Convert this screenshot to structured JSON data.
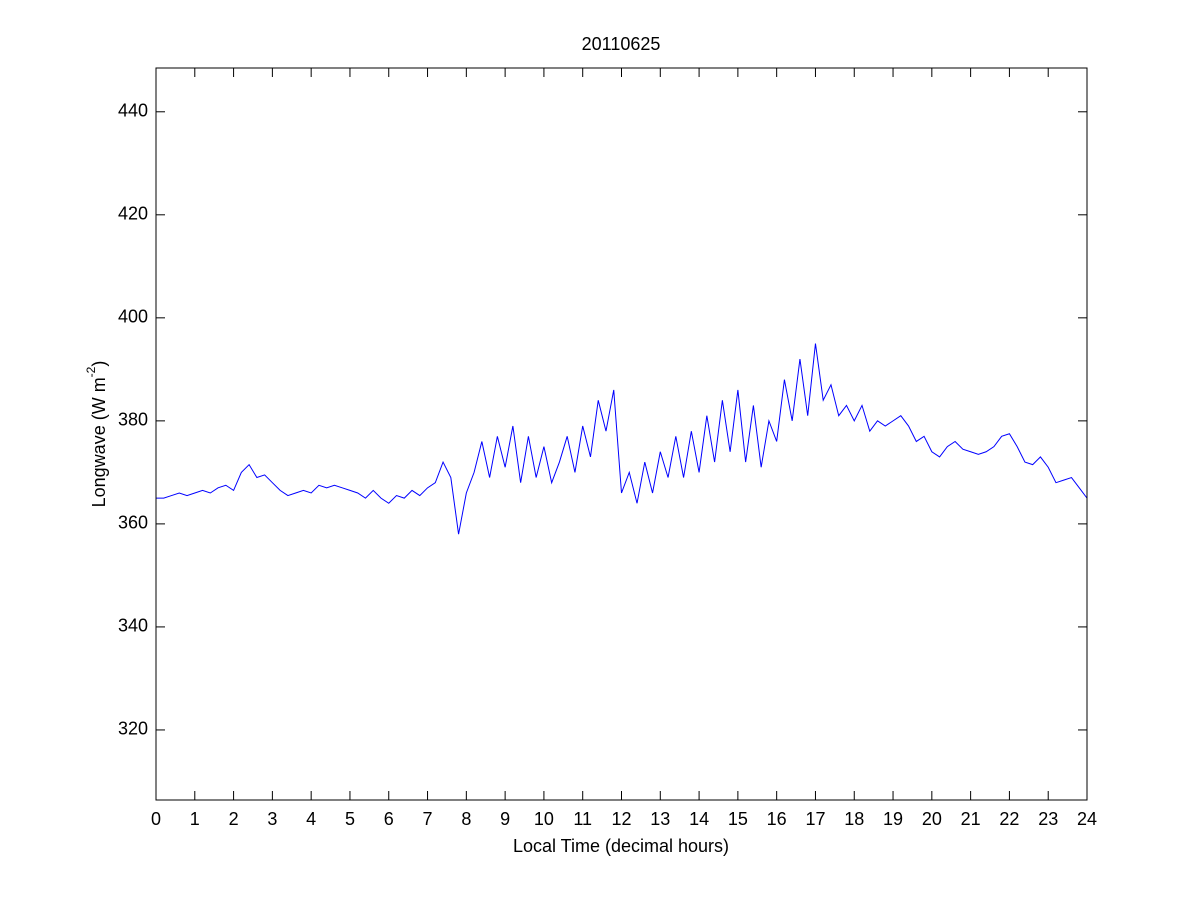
{
  "chart_data": {
    "type": "line",
    "title": "20110625",
    "xlabel": "Local Time (decimal hours)",
    "ylabel": {
      "text": "Longwave (W m",
      "superscript": "-2",
      "suffix": ")"
    },
    "xlim": [
      0,
      24
    ],
    "xticks": [
      0,
      1,
      2,
      3,
      4,
      5,
      6,
      7,
      8,
      9,
      10,
      11,
      12,
      13,
      14,
      15,
      16,
      17,
      18,
      19,
      20,
      21,
      22,
      23,
      24
    ],
    "ylim": [
      306.4,
      448.5
    ],
    "yticks": [
      320,
      340,
      360,
      380,
      400,
      420,
      440
    ],
    "grid": false,
    "series": [
      {
        "color": "#0000ff",
        "x": [
          0,
          0.2,
          0.4,
          0.6,
          0.8,
          1,
          1.2,
          1.4,
          1.6,
          1.8,
          2,
          2.2,
          2.4,
          2.6,
          2.8,
          3,
          3.2,
          3.4,
          3.6,
          3.8,
          4,
          4.2,
          4.4,
          4.6,
          4.8,
          5,
          5.2,
          5.4,
          5.6,
          5.8,
          6,
          6.2,
          6.4,
          6.6,
          6.8,
          7,
          7.2,
          7.4,
          7.6,
          7.8,
          8,
          8.2,
          8.4,
          8.6,
          8.8,
          9,
          9.2,
          9.4,
          9.6,
          9.8,
          10,
          10.2,
          10.4,
          10.6,
          10.8,
          11,
          11.2,
          11.4,
          11.6,
          11.8,
          12,
          12.2,
          12.4,
          12.6,
          12.8,
          13,
          13.2,
          13.4,
          13.6,
          13.8,
          14,
          14.2,
          14.4,
          14.6,
          14.8,
          15,
          15.2,
          15.4,
          15.6,
          15.8,
          16,
          16.2,
          16.4,
          16.6,
          16.8,
          17,
          17.2,
          17.4,
          17.6,
          17.8,
          18,
          18.2,
          18.4,
          18.6,
          18.8,
          19,
          19.2,
          19.4,
          19.6,
          19.8,
          20,
          20.2,
          20.4,
          20.6,
          20.8,
          21,
          21.2,
          21.4,
          21.6,
          21.8,
          22,
          22.2,
          22.4,
          22.6,
          22.8,
          23,
          23.2,
          23.4,
          23.6,
          23.8,
          24
        ],
        "values": [
          365,
          365,
          365.5,
          366,
          365.5,
          366,
          366.5,
          366,
          367,
          367.5,
          366.5,
          370,
          371.5,
          369,
          369.5,
          368,
          366.5,
          365.5,
          366,
          366.5,
          366,
          367.5,
          367,
          367.5,
          367,
          366.5,
          366,
          365,
          366.5,
          365,
          364,
          365.5,
          365,
          366.5,
          365.5,
          367,
          368,
          372,
          369,
          358,
          366,
          370,
          376,
          369,
          377,
          371,
          379,
          368,
          377,
          369,
          375,
          368,
          372,
          377,
          370,
          379,
          373,
          384,
          378,
          386,
          366,
          370,
          364,
          372,
          366,
          374,
          369,
          377,
          369,
          378,
          370,
          381,
          372,
          384,
          374,
          386,
          372,
          383,
          371,
          380,
          376,
          388,
          380,
          392,
          381,
          395,
          384,
          387,
          381,
          383,
          380,
          383,
          378,
          380,
          379,
          380,
          381,
          379,
          376,
          377,
          374,
          373,
          375,
          376,
          374.5,
          374,
          373.5,
          374,
          375,
          377,
          377.5,
          375,
          372,
          371.5,
          373,
          371,
          368,
          368.5,
          369,
          367,
          365
        ]
      }
    ]
  }
}
